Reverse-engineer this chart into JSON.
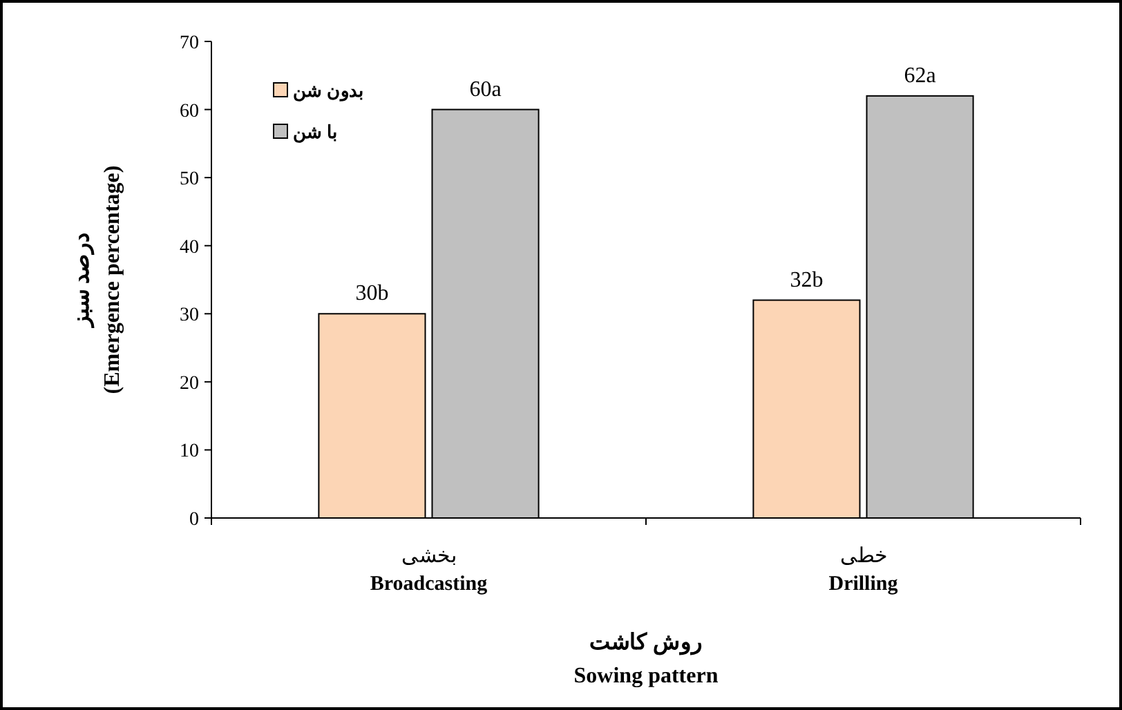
{
  "chart_data": {
    "type": "bar",
    "categories": [
      "بخشی\nBroadcasting",
      "خطی\nDrilling"
    ],
    "xlabel": "روش کاشت\nSowing pattern",
    "ylabel": "درصد سبز\n(Emergence percentage)",
    "ylim": [
      0,
      70
    ],
    "yticks": [
      0,
      10,
      20,
      30,
      40,
      50,
      60,
      70
    ],
    "legend": "top left",
    "grid": false,
    "series": [
      {
        "name": "بدون شن",
        "color": "#fcd5b5",
        "values": [
          30,
          32
        ],
        "value_labels": [
          "30b",
          "32b"
        ]
      },
      {
        "name": "با شن",
        "color": "#c0c0c0",
        "values": [
          60,
          62
        ],
        "value_labels": [
          "60a",
          "62a"
        ]
      }
    ]
  }
}
